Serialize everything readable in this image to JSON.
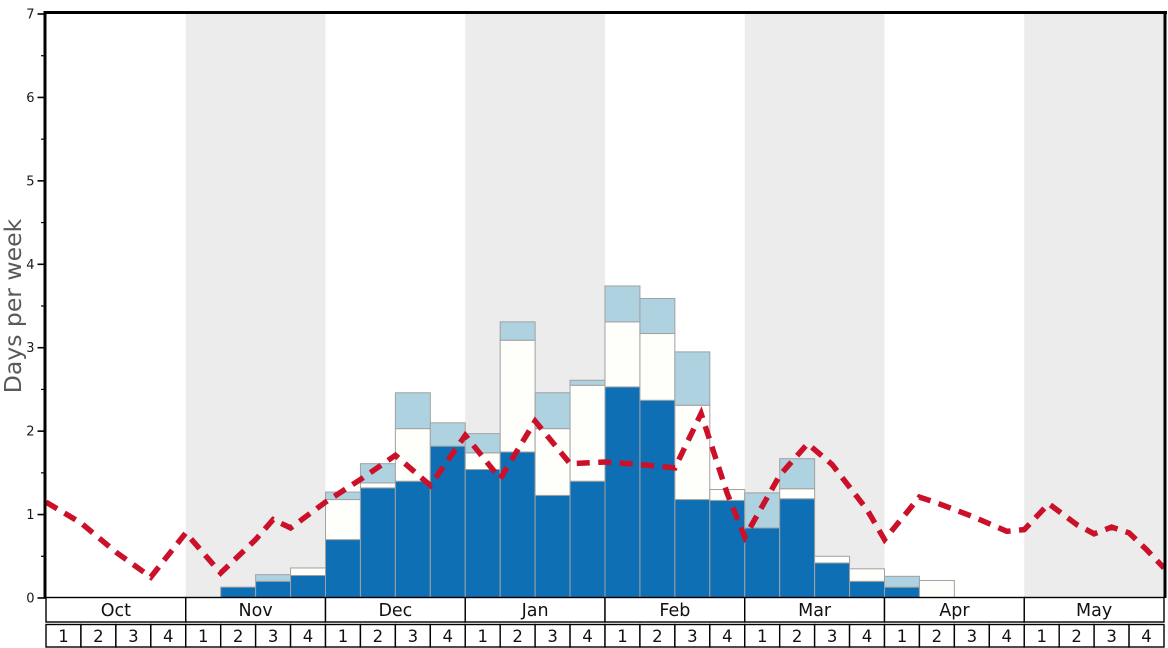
{
  "chart_data": {
    "type": "bar",
    "subtype": "stacked-bar-with-dashed-line-overlay",
    "title": "",
    "xlabel": "",
    "ylabel": "Days per week",
    "ylim": [
      0,
      7
    ],
    "y_ticks": [
      "0",
      "1",
      "2",
      "3",
      "4",
      "5",
      "6",
      "7"
    ],
    "minor_tick_step": 0.5,
    "grid": false,
    "legend": "none",
    "months": [
      "Oct",
      "Nov",
      "Dec",
      "Jan",
      "Feb",
      "Mar",
      "Apr",
      "May"
    ],
    "weeks_per_month": 4,
    "week_labels": [
      "1",
      "2",
      "3",
      "4"
    ],
    "shaded_month_indices": [
      1,
      3,
      5,
      7
    ],
    "categories": [
      "Oct-1",
      "Oct-2",
      "Oct-3",
      "Oct-4",
      "Nov-1",
      "Nov-2",
      "Nov-3",
      "Nov-4",
      "Dec-1",
      "Dec-2",
      "Dec-3",
      "Dec-4",
      "Jan-1",
      "Jan-2",
      "Jan-3",
      "Jan-4",
      "Feb-1",
      "Feb-2",
      "Feb-3",
      "Feb-4",
      "Mar-1",
      "Mar-2",
      "Mar-3",
      "Mar-4",
      "Apr-1",
      "Apr-2",
      "Apr-3",
      "Apr-4",
      "May-1",
      "May-2",
      "May-3",
      "May-4"
    ],
    "series_stacked_cumulative_tops": {
      "note": "values are cumulative stack tops in days-per-week; segments drawn dark(bottom)->white(middle)->light(top)",
      "dark_top": [
        0,
        0,
        0,
        0,
        0,
        0.13,
        0.2,
        0.27,
        0.7,
        1.32,
        1.4,
        1.82,
        1.54,
        1.75,
        1.23,
        1.4,
        2.53,
        2.37,
        1.18,
        1.17,
        0.84,
        1.19,
        0.42,
        0.2,
        0.13,
        0,
        0,
        0,
        0,
        0,
        0,
        0
      ],
      "white_top": [
        0,
        0,
        0,
        0,
        0,
        0.13,
        0.2,
        0.36,
        1.18,
        1.38,
        2.03,
        1.82,
        1.74,
        3.09,
        2.03,
        2.55,
        3.31,
        3.17,
        2.31,
        1.3,
        0.84,
        1.31,
        0.5,
        0.35,
        0.13,
        0.21,
        0,
        0,
        0,
        0,
        0,
        0
      ],
      "light_top": [
        0,
        0,
        0,
        0,
        0,
        0.13,
        0.28,
        0.36,
        1.27,
        1.61,
        2.46,
        2.1,
        1.97,
        3.31,
        2.46,
        2.61,
        3.74,
        3.59,
        2.95,
        1.3,
        1.26,
        1.67,
        0.5,
        0.35,
        0.26,
        0.21,
        0,
        0,
        0,
        0,
        0,
        0
      ]
    },
    "line": {
      "name": "red-dashed-average-line",
      "x_unit": "weeks-from-Oct-week1-start (0-32)",
      "points": [
        [
          0,
          1.15
        ],
        [
          1,
          0.9
        ],
        [
          2,
          0.55
        ],
        [
          3,
          0.25
        ],
        [
          4,
          0.78
        ],
        [
          5,
          0.3
        ],
        [
          6,
          0.7
        ],
        [
          6.5,
          0.94
        ],
        [
          7,
          0.84
        ],
        [
          8,
          1.15
        ],
        [
          9,
          1.42
        ],
        [
          10,
          1.71
        ],
        [
          11,
          1.35
        ],
        [
          12,
          1.95
        ],
        [
          13,
          1.43
        ],
        [
          14,
          2.12
        ],
        [
          15,
          1.61
        ],
        [
          16,
          1.63
        ],
        [
          17,
          1.6
        ],
        [
          18,
          1.56
        ],
        [
          18.75,
          2.21
        ],
        [
          19.5,
          1.25
        ],
        [
          20,
          0.73
        ],
        [
          21,
          1.47
        ],
        [
          21.8,
          1.85
        ],
        [
          22.5,
          1.6
        ],
        [
          23.5,
          1.06
        ],
        [
          24,
          0.7
        ],
        [
          25,
          1.21
        ],
        [
          25.5,
          1.14
        ],
        [
          26.5,
          0.98
        ],
        [
          27.5,
          0.8
        ],
        [
          28,
          0.82
        ],
        [
          28.7,
          1.13
        ],
        [
          29.5,
          0.88
        ],
        [
          30,
          0.77
        ],
        [
          30.5,
          0.85
        ],
        [
          31,
          0.78
        ],
        [
          31.5,
          0.58
        ],
        [
          32,
          0.36
        ]
      ]
    },
    "colors": {
      "dark_blue": "#0e6fb4",
      "pale_blue": "#aed2e0",
      "white_segment": "#fefefb",
      "bar_border": "#a1a1a1",
      "line_red": "#cb102a",
      "band_gray": "#ececec",
      "axis_black": "#000000",
      "label_gray": "#595959",
      "tick_text": "#1a1a1a",
      "cell_border": "#000000",
      "cell_bg": "#ffffff"
    }
  }
}
